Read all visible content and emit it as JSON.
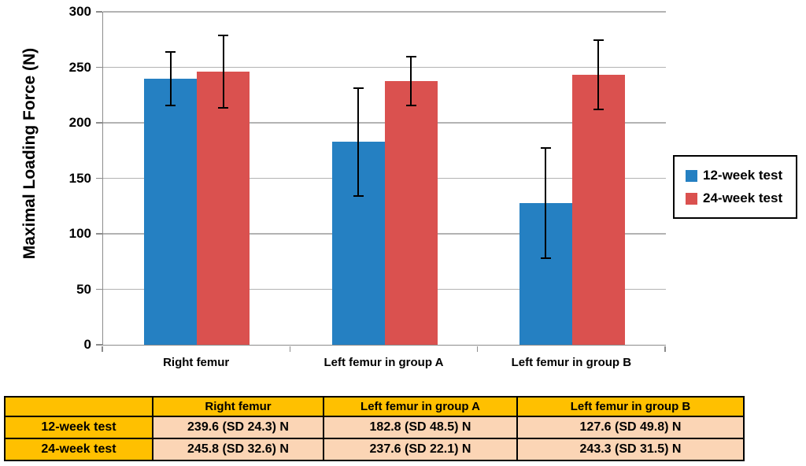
{
  "chart_data": {
    "type": "bar",
    "title": "",
    "ylabel": "Maximal Loading Force (N)",
    "xlabel": "",
    "ylim": [
      0,
      300
    ],
    "yticks": [
      0,
      50,
      100,
      150,
      200,
      250,
      300
    ],
    "grid": true,
    "legend_position": "right",
    "categories": [
      "Right femur",
      "Left femur in group A",
      "Left femur in group B"
    ],
    "series": [
      {
        "name": "12-week test",
        "color": "#2580C2",
        "values": [
          239.6,
          182.8,
          127.6
        ],
        "sd": [
          24.3,
          48.5,
          49.8
        ]
      },
      {
        "name": "24-week test",
        "color": "#DA514F",
        "values": [
          245.8,
          237.6,
          243.3
        ],
        "sd": [
          32.6,
          22.1,
          31.5
        ]
      }
    ],
    "colors": {
      "grid": "#B3B3B3",
      "axis": "#8C8C8C",
      "error_bar": "#000000",
      "background": "#FFFFFF"
    }
  },
  "table": {
    "header": [
      "",
      "Right femur",
      "Left femur in group A",
      "Left femur in group B"
    ],
    "rows": [
      {
        "label": "12-week test",
        "cells": [
          "239.6 (SD 24.3) N",
          "182.8 (SD 48.5) N",
          "127.6 (SD 49.8) N"
        ]
      },
      {
        "label": "24-week test",
        "cells": [
          "245.8 (SD 32.6) N",
          "237.6 (SD 22.1) N",
          "243.3 (SD 31.5) N"
        ]
      }
    ],
    "colors": {
      "header_bg": "#FFC000",
      "cell_bg": "#FBD5B5",
      "border": "#000000"
    }
  }
}
